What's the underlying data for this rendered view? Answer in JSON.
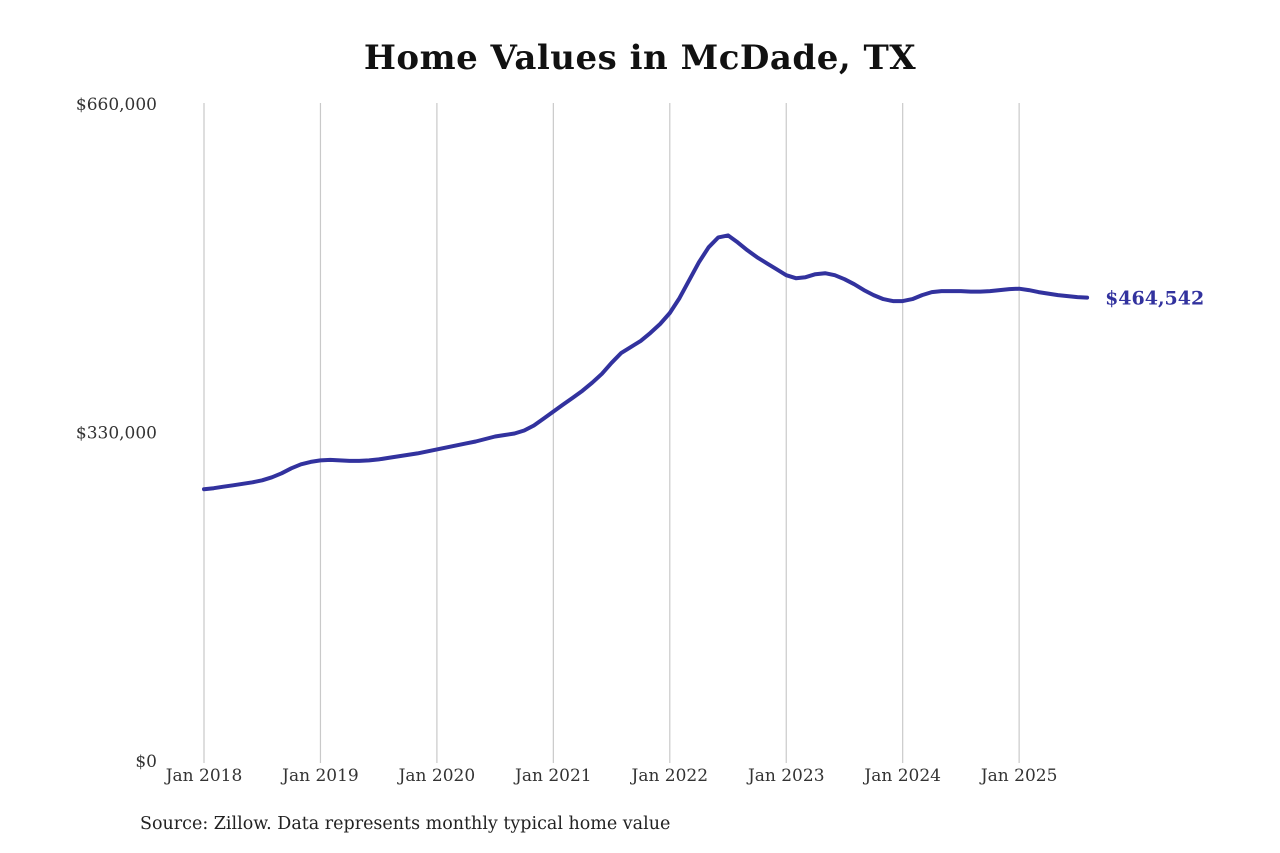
{
  "title": "Home Values in McDade, TX",
  "source_note": "Source: Zillow. Data represents monthly typical home value",
  "end_label": "$464,542",
  "colors": {
    "line": "#32329e",
    "end_label": "#32329e",
    "grid": "#c9c9c9",
    "axis_text": "#333333",
    "background": "#ffffff"
  },
  "chart_data": {
    "type": "line",
    "title": "Home Values in McDade, TX",
    "xlabel": "",
    "ylabel": "",
    "ylim": [
      0,
      660000
    ],
    "grid": "vertical-only",
    "legend": "none",
    "annotation": "$464,542",
    "y_ticks": [
      {
        "label": "$0",
        "value": 0
      },
      {
        "label": "$330,000",
        "value": 330000
      },
      {
        "label": "$660,000",
        "value": 660000
      }
    ],
    "x_tick_labels": [
      "Jan 2018",
      "Jan 2019",
      "Jan 2020",
      "Jan 2021",
      "Jan 2022",
      "Jan 2023",
      "Jan 2024",
      "Jan 2025"
    ],
    "x": [
      "2018-01",
      "2018-02",
      "2018-03",
      "2018-04",
      "2018-05",
      "2018-06",
      "2018-07",
      "2018-08",
      "2018-09",
      "2018-10",
      "2018-11",
      "2018-12",
      "2019-01",
      "2019-02",
      "2019-03",
      "2019-04",
      "2019-05",
      "2019-06",
      "2019-07",
      "2019-08",
      "2019-09",
      "2019-10",
      "2019-11",
      "2019-12",
      "2020-01",
      "2020-02",
      "2020-03",
      "2020-04",
      "2020-05",
      "2020-06",
      "2020-07",
      "2020-08",
      "2020-09",
      "2020-10",
      "2020-11",
      "2020-12",
      "2021-01",
      "2021-02",
      "2021-03",
      "2021-04",
      "2021-05",
      "2021-06",
      "2021-07",
      "2021-08",
      "2021-09",
      "2021-10",
      "2021-11",
      "2021-12",
      "2022-01",
      "2022-02",
      "2022-03",
      "2022-04",
      "2022-05",
      "2022-06",
      "2022-07",
      "2022-08",
      "2022-09",
      "2022-10",
      "2022-11",
      "2022-12",
      "2023-01",
      "2023-02",
      "2023-03",
      "2023-04",
      "2023-05",
      "2023-06",
      "2023-07",
      "2023-08",
      "2023-09",
      "2023-10",
      "2023-11",
      "2023-12",
      "2024-01",
      "2024-02",
      "2024-03",
      "2024-04",
      "2024-05",
      "2024-06",
      "2024-07",
      "2024-08",
      "2024-09",
      "2024-10",
      "2024-11",
      "2024-12",
      "2025-01",
      "2025-02",
      "2025-03",
      "2025-04",
      "2025-05",
      "2025-06",
      "2025-07",
      "2025-08"
    ],
    "values": [
      272000,
      273000,
      274500,
      276000,
      277500,
      279000,
      281000,
      284000,
      288000,
      293000,
      297000,
      299500,
      301000,
      301500,
      301000,
      300500,
      300500,
      301000,
      302000,
      303500,
      305000,
      306500,
      308000,
      310000,
      312000,
      314000,
      316000,
      318000,
      320000,
      322500,
      325000,
      326500,
      328000,
      331000,
      336000,
      343000,
      350000,
      357000,
      364000,
      371000,
      379000,
      388000,
      399000,
      409000,
      415000,
      421000,
      429000,
      438000,
      449000,
      464000,
      482000,
      500000,
      515000,
      525000,
      527000,
      520000,
      512000,
      505000,
      499000,
      493000,
      487000,
      484000,
      485000,
      488000,
      489000,
      487000,
      483000,
      478000,
      472000,
      467000,
      463000,
      461000,
      461000,
      463000,
      467000,
      470000,
      471000,
      471000,
      471000,
      470500,
      470500,
      471000,
      472000,
      473000,
      473500,
      472000,
      470000,
      468500,
      467000,
      466000,
      465000,
      464542
    ]
  }
}
